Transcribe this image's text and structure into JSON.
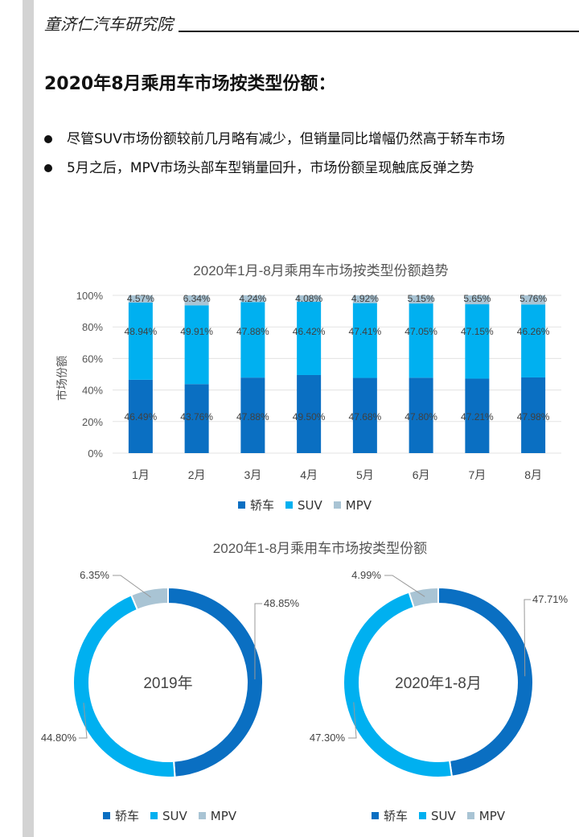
{
  "header": {
    "org": "童济仁汽车研究院"
  },
  "page_title": "2020年8月乘用车市场按类型份额：",
  "bullets": [
    "尽管SUV市场份额较前几月略有减少，但销量同比增幅仍然高于轿车市场",
    "5月之后，MPV市场头部车型销量回升，市场份额呈现触底反弹之势"
  ],
  "colors": {
    "sedan": "#0a6fc2",
    "suv": "#00b0f0",
    "mpv": "#a9c4d4"
  },
  "chart_data": [
    {
      "type": "bar",
      "stacked": true,
      "title": "2020年1月-8月乘用车市场按类型份额趋势",
      "ylabel": "市场份额",
      "xlabel": "",
      "ylim": [
        0,
        100
      ],
      "yticks": [
        "0%",
        "20%",
        "40%",
        "60%",
        "80%",
        "100%"
      ],
      "categories": [
        "1月",
        "2月",
        "3月",
        "4月",
        "5月",
        "6月",
        "7月",
        "8月"
      ],
      "series": [
        {
          "name": "轿车",
          "values": [
            46.49,
            43.76,
            47.88,
            49.5,
            47.68,
            47.8,
            47.21,
            47.98
          ],
          "labels": [
            "46.49%",
            "43.76%",
            "47.88%",
            "49.50%",
            "47.68%",
            "47.80%",
            "47.21%",
            "47.98%"
          ]
        },
        {
          "name": "SUV",
          "values": [
            48.94,
            49.91,
            47.88,
            46.42,
            47.41,
            47.05,
            47.15,
            46.26
          ],
          "labels": [
            "48.94%",
            "49.91%",
            "47.88%",
            "46.42%",
            "47.41%",
            "47.05%",
            "47.15%",
            "46.26%"
          ]
        },
        {
          "name": "MPV",
          "values": [
            4.57,
            6.34,
            4.24,
            4.08,
            4.92,
            5.15,
            5.65,
            5.76
          ],
          "labels": [
            "4.57%",
            "6.34%",
            "4.24%",
            "4.08%",
            "4.92%",
            "5.15%",
            "5.65%",
            "5.76%"
          ]
        }
      ],
      "grid": true,
      "legend": "bottom"
    },
    {
      "type": "pie",
      "donut": true,
      "title": "2020年1-8月乘用车市场按类型份额",
      "center_label": "2019年",
      "categories": [
        "轿车",
        "SUV",
        "MPV"
      ],
      "values": [
        48.85,
        44.8,
        6.35
      ],
      "labels": [
        "48.85%",
        "44.80%",
        "6.35%"
      ],
      "legend": "bottom"
    },
    {
      "type": "pie",
      "donut": true,
      "center_label": "2020年1-8月",
      "categories": [
        "轿车",
        "SUV",
        "MPV"
      ],
      "values": [
        47.71,
        47.3,
        4.99
      ],
      "labels": [
        "47.71%",
        "47.30%",
        "4.99%"
      ],
      "legend": "bottom"
    }
  ]
}
